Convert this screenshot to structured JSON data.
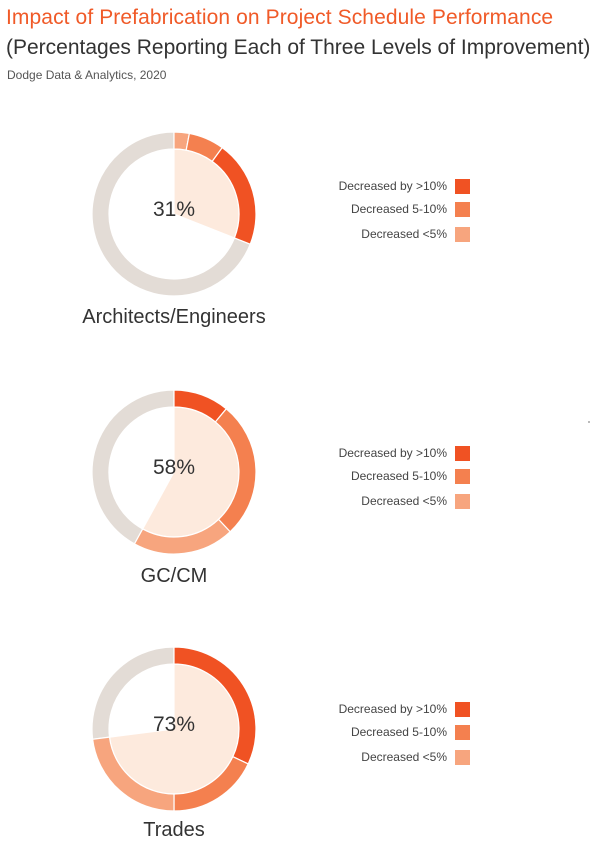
{
  "header": {
    "title": "Impact of Prefabrication on Project Schedule Performance",
    "subtitle": "(Percentages Reporting Each of Three Levels of Improvement)",
    "source": "Dodge Data & Analytics, 2020"
  },
  "colors": {
    "title": "#F05A28",
    "gt10": "#F05223",
    "5to10": "#F4804F",
    "lt5": "#F7A57E",
    "inner_fill": "#FDEADD",
    "remainder_ring": "#E3DCD6"
  },
  "legend": [
    {
      "label": "Decreased by >10%",
      "color": "#F05223"
    },
    {
      "label": "Decreased 5-10%",
      "color": "#F4804F"
    },
    {
      "label": "Decreased <5%",
      "color": "#F7A57E"
    }
  ],
  "panels": [
    {
      "label": "Architects/Engineers",
      "total": "31%"
    },
    {
      "label": "GC/CM",
      "total": "58%"
    },
    {
      "label": "Trades",
      "total": "73%"
    }
  ],
  "chart_data": [
    {
      "type": "pie",
      "subtype": "donut",
      "title": "Architects/Engineers",
      "center_label": "31%",
      "total": 31,
      "segment_order_clockwise_from_top": [
        "Decreased <5%",
        "Decreased 5-10%",
        "Decreased by >10%"
      ],
      "categories": [
        "Decreased by >10%",
        "Decreased 5-10%",
        "Decreased <5%"
      ],
      "values": [
        21,
        7,
        3
      ],
      "remainder": 69
    },
    {
      "type": "pie",
      "subtype": "donut",
      "title": "GC/CM",
      "center_label": "58%",
      "total": 58,
      "segment_order_clockwise_from_top": [
        "Decreased by >10%",
        "Decreased 5-10%",
        "Decreased <5%"
      ],
      "categories": [
        "Decreased by >10%",
        "Decreased 5-10%",
        "Decreased <5%"
      ],
      "values": [
        11,
        27,
        20
      ],
      "remainder": 42
    },
    {
      "type": "pie",
      "subtype": "donut",
      "title": "Trades",
      "center_label": "73%",
      "total": 73,
      "segment_order_clockwise_from_top": [
        "Decreased by >10%",
        "Decreased 5-10%",
        "Decreased <5%"
      ],
      "categories": [
        "Decreased by >10%",
        "Decreased 5-10%",
        "Decreased <5%"
      ],
      "values": [
        32,
        18,
        23
      ],
      "remainder": 27
    }
  ]
}
